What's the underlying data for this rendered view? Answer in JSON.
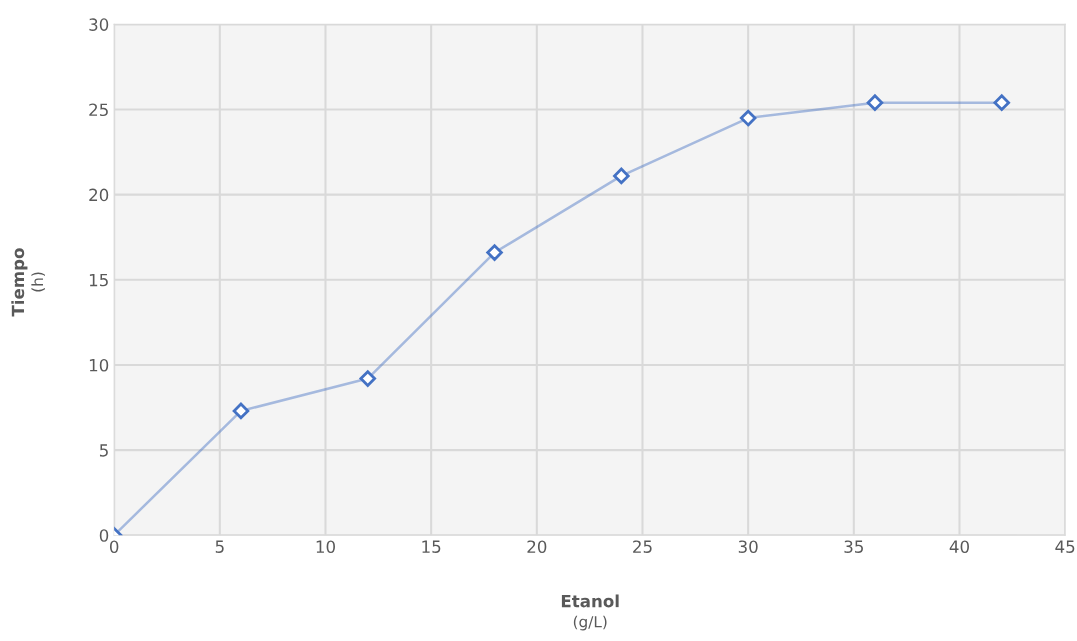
{
  "chart_data": {
    "type": "line",
    "xlabel": "Etanol\n(g/L)",
    "ylabel": "Tiempo\n(h)",
    "x": [
      0,
      6,
      12,
      18,
      24,
      30,
      36,
      42
    ],
    "series": [
      {
        "color": "#4472c4",
        "values": [
          0,
          7.3,
          9.2,
          16.6,
          21.1,
          24.5,
          25.4,
          25.4
        ]
      }
    ],
    "xlim": [
      0,
      45
    ],
    "xticks": [
      0,
      5,
      10,
      15,
      20,
      25,
      30,
      35,
      40,
      45
    ],
    "ylim": [
      0,
      30
    ],
    "yticks": [
      0,
      5,
      10,
      15,
      20,
      25,
      30
    ],
    "grid": true,
    "marker": "diamond",
    "line_style": "solid"
  }
}
